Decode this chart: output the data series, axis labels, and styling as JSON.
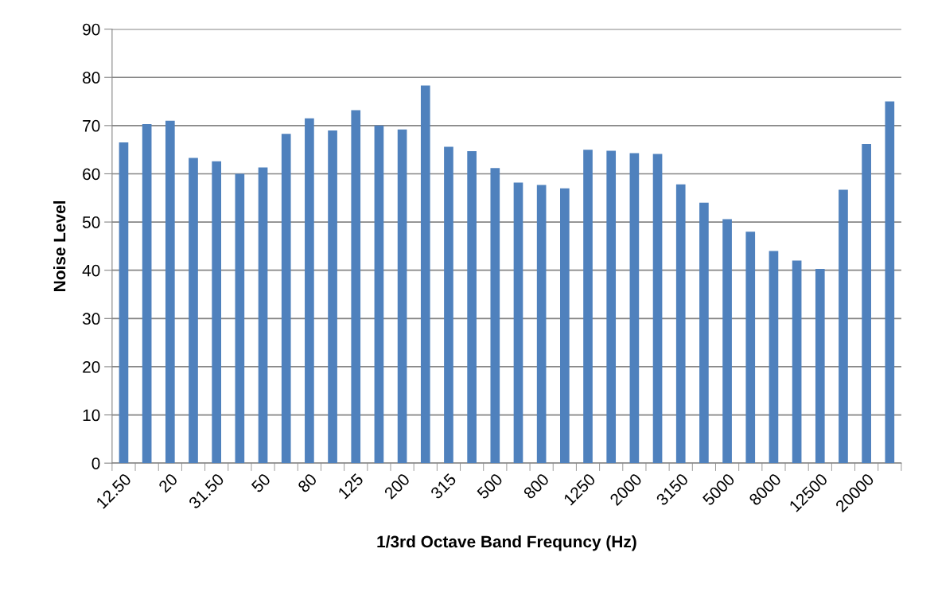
{
  "chart_data": {
    "type": "bar",
    "xlabel": "1/3rd Octave Band Frequncy (Hz)",
    "ylabel": "Noise Level",
    "categories": [
      "12.50",
      null,
      "20",
      null,
      "31.50",
      null,
      "50",
      null,
      "80",
      null,
      "125",
      null,
      "200",
      null,
      "315",
      null,
      "500",
      null,
      "800",
      null,
      "1250",
      null,
      "2000",
      null,
      "3150",
      null,
      "5000",
      null,
      "8000",
      null,
      "12500",
      null,
      "20000",
      null
    ],
    "values": [
      66.5,
      70.3,
      71,
      63.3,
      62.6,
      60,
      61.3,
      68.3,
      71.5,
      69,
      73.2,
      70,
      69.2,
      78.3,
      65.6,
      64.7,
      61.2,
      58.2,
      57.7,
      57,
      65,
      64.8,
      64.3,
      64.1,
      57.8,
      54,
      50.6,
      48,
      44,
      42,
      40.3,
      56.7,
      66.2,
      75
    ],
    "color": "#4f81bd",
    "ylim": [
      0,
      90
    ],
    "yticks": [
      0,
      10,
      20,
      30,
      40,
      50,
      60,
      70,
      80,
      90
    ],
    "grid": "y"
  }
}
